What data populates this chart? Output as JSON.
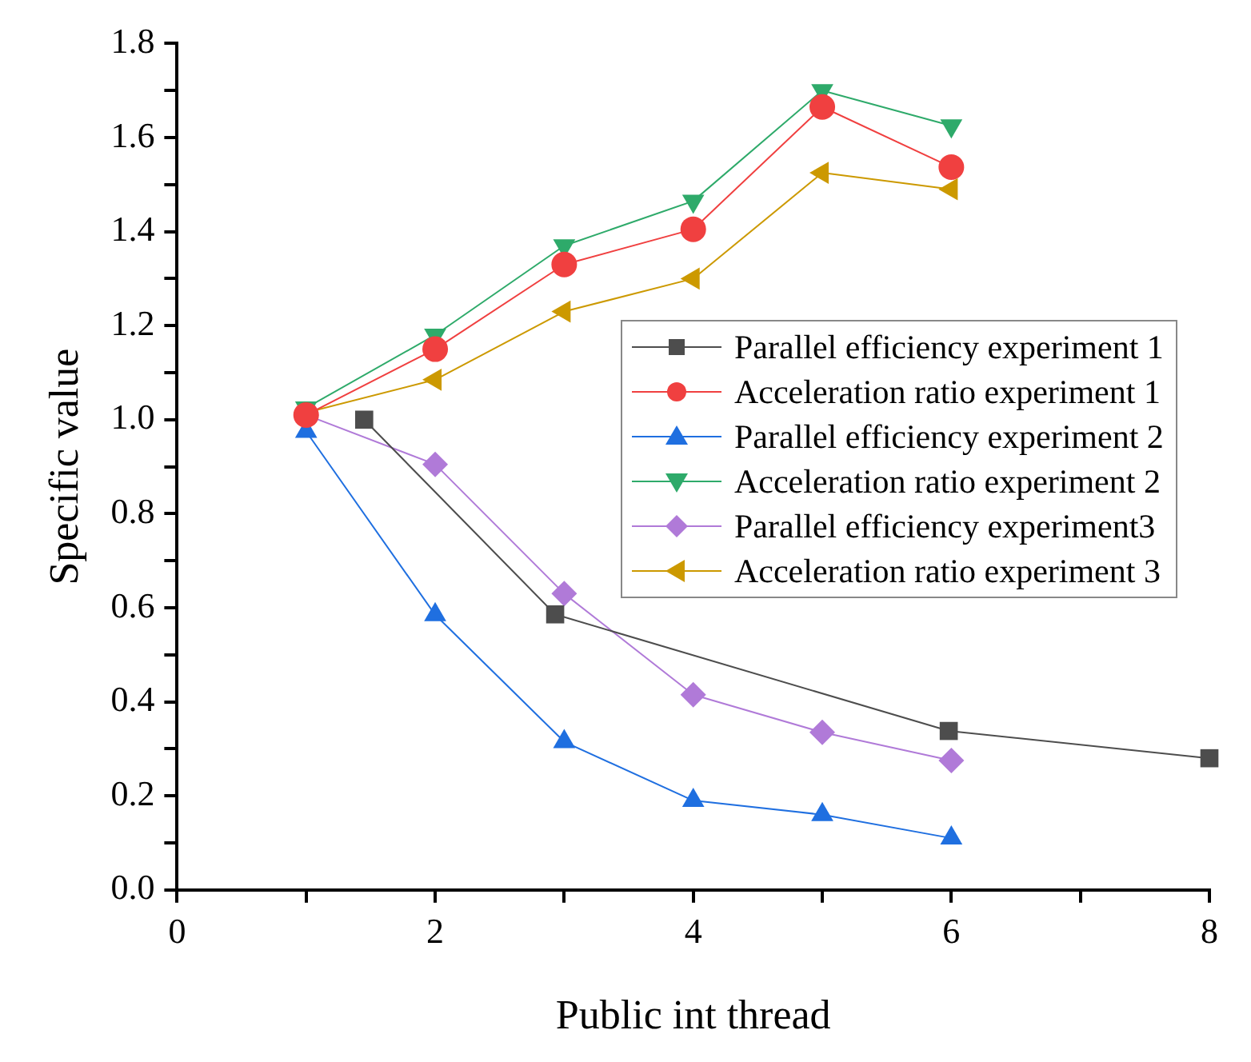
{
  "chart_data": {
    "type": "line",
    "xlabel": "Public int thread",
    "ylabel": "Specific value",
    "xlim": [
      0,
      8
    ],
    "xticks": [
      0,
      2,
      4,
      6,
      8
    ],
    "ylim": [
      0,
      1.8
    ],
    "yticks": [
      {
        "value": 0,
        "label": "0.0"
      },
      {
        "value": 0.2,
        "label": "0.2"
      },
      {
        "value": 0.4,
        "label": "0.4"
      },
      {
        "value": 0.6,
        "label": "0.6"
      },
      {
        "value": 0.8,
        "label": "0.8"
      },
      {
        "value": 1,
        "label": "1.0"
      },
      {
        "value": 1.2,
        "label": "1.2"
      },
      {
        "value": 1.4,
        "label": "1.4"
      },
      {
        "value": 1.6,
        "label": "1.6"
      },
      {
        "value": 1.8,
        "label": "1.8"
      }
    ],
    "grid": false,
    "legend": "right",
    "series": [
      {
        "name": "Parallel efficiency experiment 1",
        "color": "#4d4d4d",
        "marker": "square",
        "x": [
          1.45,
          2.93,
          5.98,
          8
        ],
        "values": [
          1.0,
          0.586,
          0.338,
          0.28
        ]
      },
      {
        "name": "Acceleration ratio experiment 1",
        "color": "#f04040",
        "marker": "circle",
        "x": [
          1,
          2,
          3,
          4,
          5,
          6
        ],
        "values": [
          1.01,
          1.15,
          1.33,
          1.405,
          1.665,
          1.537
        ]
      },
      {
        "name": "Parallel efficiency experiment 2",
        "color": "#1f6fe0",
        "marker": "triangle",
        "x": [
          1,
          2,
          3,
          4,
          5,
          6
        ],
        "values": [
          0.975,
          0.585,
          0.315,
          0.19,
          0.16,
          0.11
        ]
      },
      {
        "name": "Acceleration ratio experiment 2",
        "color": "#2eaa6a",
        "marker": "triangle-down",
        "x": [
          1,
          2,
          3,
          4,
          5,
          6
        ],
        "values": [
          1.025,
          1.18,
          1.37,
          1.465,
          1.7,
          1.625
        ]
      },
      {
        "name": "Parallel efficiency experiment3",
        "color": "#b07ad8",
        "marker": "diamond",
        "x": [
          1,
          2,
          3,
          4,
          5,
          6
        ],
        "values": [
          1.01,
          0.905,
          0.63,
          0.415,
          0.335,
          0.275
        ]
      },
      {
        "name": "Acceleration ratio experiment 3",
        "color": "#cc9900",
        "marker": "triangle-left",
        "x": [
          1,
          2,
          3,
          4,
          5,
          6
        ],
        "values": [
          1.015,
          1.085,
          1.23,
          1.3,
          1.525,
          1.49
        ]
      }
    ]
  }
}
